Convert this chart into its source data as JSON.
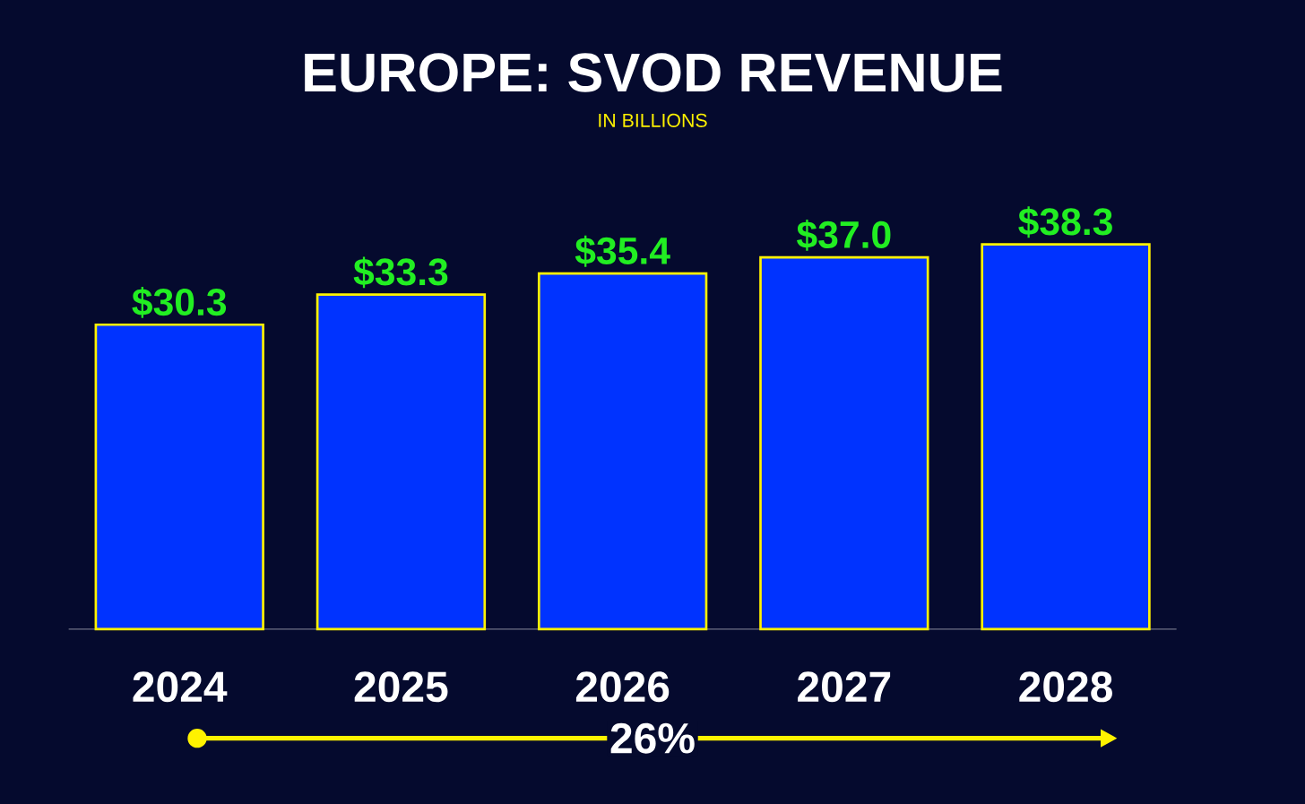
{
  "chart_data": {
    "type": "bar",
    "title": "EUROPE: SVOD REVENUE",
    "subtitle": "IN BILLIONS",
    "categories": [
      "2024",
      "2025",
      "2026",
      "2027",
      "2028"
    ],
    "values": [
      30.3,
      33.3,
      35.4,
      37.0,
      38.3
    ],
    "value_labels": [
      "$30.3",
      "$33.3",
      "$35.4",
      "$37.0",
      "$38.3"
    ],
    "color": "#0033ff",
    "annotations": [
      "26%"
    ]
  }
}
